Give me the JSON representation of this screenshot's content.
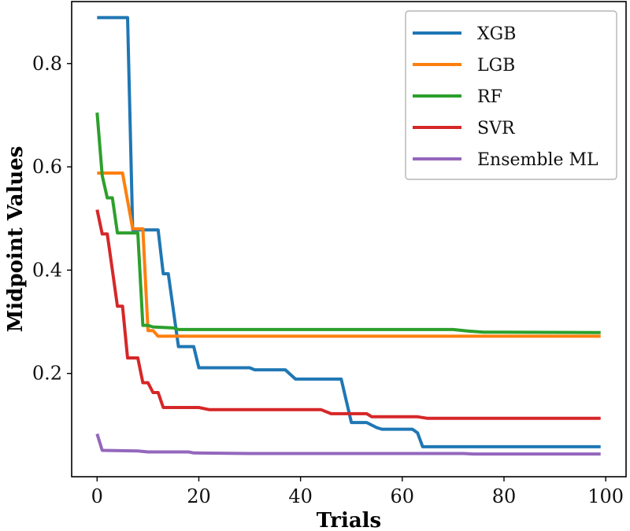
{
  "chart_data": {
    "type": "line",
    "xlabel": "Trials",
    "ylabel": "Midpoint Values",
    "xlim": [
      -5,
      104
    ],
    "ylim": [
      0.0,
      0.92
    ],
    "xticks": [
      0,
      20,
      40,
      60,
      80,
      100
    ],
    "xtick_labels": [
      "0",
      "20",
      "40",
      "60",
      "80",
      "100"
    ],
    "yticks": [
      0.2,
      0.4,
      0.6,
      0.8
    ],
    "ytick_labels": [
      "0.2",
      "0.4",
      "0.6",
      "0.8"
    ],
    "grid": false,
    "legend_position": "top-right",
    "series": [
      {
        "name": "XGB",
        "color": "#1f77b4",
        "points": [
          [
            0,
            0.889
          ],
          [
            6,
            0.889
          ],
          [
            7,
            0.478
          ],
          [
            12,
            0.478
          ],
          [
            13,
            0.393
          ],
          [
            14,
            0.393
          ],
          [
            16,
            0.252
          ],
          [
            19,
            0.252
          ],
          [
            20,
            0.211
          ],
          [
            30,
            0.211
          ],
          [
            31,
            0.207
          ],
          [
            37,
            0.207
          ],
          [
            39,
            0.189
          ],
          [
            48,
            0.189
          ],
          [
            50,
            0.105
          ],
          [
            53,
            0.105
          ],
          [
            55,
            0.095
          ],
          [
            56,
            0.092
          ],
          [
            62,
            0.092
          ],
          [
            63,
            0.085
          ],
          [
            64,
            0.058
          ],
          [
            99,
            0.058
          ]
        ]
      },
      {
        "name": "LGB",
        "color": "#ff7f0e",
        "points": [
          [
            0,
            0.588
          ],
          [
            5,
            0.588
          ],
          [
            7,
            0.48
          ],
          [
            9,
            0.48
          ],
          [
            10,
            0.283
          ],
          [
            11,
            0.283
          ],
          [
            12,
            0.272
          ],
          [
            99,
            0.272
          ]
        ]
      },
      {
        "name": "RF",
        "color": "#2ca02c",
        "points": [
          [
            0,
            0.705
          ],
          [
            1,
            0.583
          ],
          [
            2,
            0.54
          ],
          [
            3,
            0.54
          ],
          [
            4,
            0.472
          ],
          [
            8,
            0.472
          ],
          [
            9,
            0.293
          ],
          [
            10,
            0.293
          ],
          [
            11,
            0.29
          ],
          [
            15,
            0.288
          ],
          [
            16,
            0.285
          ],
          [
            70,
            0.285
          ],
          [
            73,
            0.282
          ],
          [
            76,
            0.28
          ],
          [
            99,
            0.279
          ]
        ]
      },
      {
        "name": "SVR",
        "color": "#d62728",
        "points": [
          [
            0,
            0.517
          ],
          [
            1,
            0.47
          ],
          [
            2,
            0.47
          ],
          [
            3,
            0.4
          ],
          [
            4,
            0.33
          ],
          [
            5,
            0.33
          ],
          [
            6,
            0.23
          ],
          [
            8,
            0.23
          ],
          [
            9,
            0.182
          ],
          [
            10,
            0.182
          ],
          [
            11,
            0.163
          ],
          [
            12,
            0.163
          ],
          [
            13,
            0.134
          ],
          [
            20,
            0.134
          ],
          [
            22,
            0.13
          ],
          [
            44,
            0.13
          ],
          [
            46,
            0.122
          ],
          [
            53,
            0.122
          ],
          [
            54,
            0.116
          ],
          [
            63,
            0.116
          ],
          [
            65,
            0.113
          ],
          [
            99,
            0.113
          ]
        ]
      },
      {
        "name": "Ensemble ML",
        "color": "#9467bd",
        "points": [
          [
            0,
            0.083
          ],
          [
            1,
            0.051
          ],
          [
            8,
            0.05
          ],
          [
            10,
            0.048
          ],
          [
            18,
            0.048
          ],
          [
            19,
            0.046
          ],
          [
            30,
            0.045
          ],
          [
            72,
            0.045
          ],
          [
            74,
            0.044
          ],
          [
            99,
            0.044
          ]
        ]
      }
    ]
  }
}
